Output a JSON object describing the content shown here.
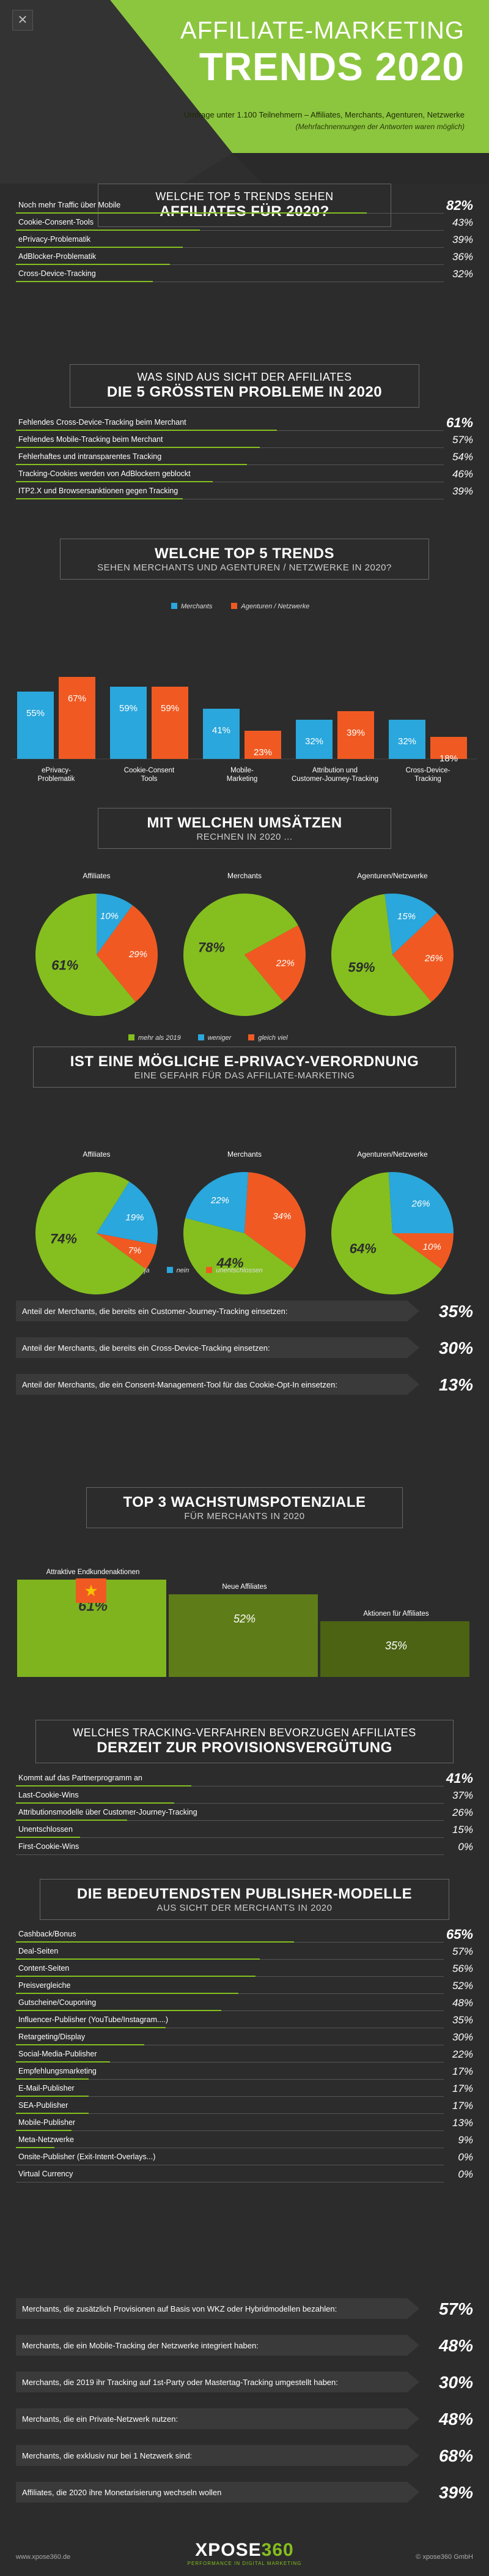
{
  "header": {
    "line1": "AFFILIATE-MARKETING",
    "line2": "TRENDS 2020",
    "info": "Umfrage unter 1.100  Teilnehmern – Affiliates, Merchants, Agenturen, Netzwerke",
    "note": "(Mehrfachnennungen der Antworten waren möglich)"
  },
  "s1": {
    "title1": "WELCHE TOP 5 TRENDS SEHEN",
    "title2": "AFFILIATES FÜR 2020?",
    "rows": [
      {
        "label": "Noch mehr Traffic über Mobile",
        "value": "82%",
        "pct": 82
      },
      {
        "label": "Cookie-Consent-Tools",
        "value": "43%",
        "pct": 43
      },
      {
        "label": "ePrivacy-Problematik",
        "value": "39%",
        "pct": 39
      },
      {
        "label": "AdBlocker-Problematik",
        "value": "36%",
        "pct": 36
      },
      {
        "label": "Cross-Device-Tracking",
        "value": "32%",
        "pct": 32
      }
    ]
  },
  "s2": {
    "title1": "WAS SIND AUS SICHT DER AFFILIATES",
    "title2": "DIE 5 GRÖSSTEN PROBLEME IN 2020",
    "rows": [
      {
        "label": "Fehlendes Cross-Device-Tracking beim Merchant",
        "value": "61%",
        "pct": 61
      },
      {
        "label": "Fehlendes Mobile-Tracking beim Merchant",
        "value": "57%",
        "pct": 57
      },
      {
        "label": "Fehlerhaftes und intransparentes Tracking",
        "value": "54%",
        "pct": 54
      },
      {
        "label": "Tracking-Cookies werden von AdBlockern geblockt",
        "value": "46%",
        "pct": 46
      },
      {
        "label": "ITP2.X und Browsersanktionen gegen Tracking",
        "value": "39%",
        "pct": 39
      }
    ]
  },
  "s3": {
    "title1": "WELCHE TOP 5 TRENDS",
    "title2": "SEHEN MERCHANTS UND AGENTUREN / NETZWERKE IN 2020?"
  },
  "s4": {
    "title1": "MIT WELCHEN UMSÄTZEN",
    "title2": "RECHNEN IN 2020 ..."
  },
  "s5": {
    "title1": "IST EINE MÖGLICHE E-PRIVACY-VERORDNUNG",
    "title2": "EINE GEFAHR FÜR DAS AFFILIATE-MARKETING"
  },
  "stats1": [
    {
      "text": "Anteil der Merchants, die bereits ein Customer-Journey-Tracking einsetzen:",
      "value": "35%"
    },
    {
      "text": "Anteil der Merchants, die bereits ein Cross-Device-Tracking einsetzen:",
      "value": "30%"
    },
    {
      "text": "Anteil der Merchants, die ein Consent-Management-Tool für das Cookie-Opt-In einsetzen:",
      "value": "13%"
    }
  ],
  "s6": {
    "title1": "TOP 3 WACHSTUMSPOTENZIALE",
    "title2": "FÜR MERCHANTS IN 2020",
    "items": [
      {
        "label": "Attraktive Endkundenaktionen",
        "value": "61%",
        "pct": 61
      },
      {
        "label": "Neue Affiliates",
        "value": "52%",
        "pct": 52
      },
      {
        "label": "Aktionen für Affiliates",
        "value": "35%",
        "pct": 35
      }
    ]
  },
  "s7": {
    "title1": "WELCHES TRACKING-VERFAHREN BEVORZUGEN AFFILIATES",
    "title2": "DERZEIT ZUR PROVISIONSVERGÜTUNG",
    "rows": [
      {
        "label": "Kommt auf das Partnerprogramm an",
        "value": "41%",
        "pct": 41
      },
      {
        "label": "Last-Cookie-Wins",
        "value": "37%",
        "pct": 37
      },
      {
        "label": "Attributionsmodelle über Customer-Journey-Tracking",
        "value": "26%",
        "pct": 26
      },
      {
        "label": "Unentschlossen",
        "value": "15%",
        "pct": 15
      },
      {
        "label": "First-Cookie-Wins",
        "value": "0%",
        "pct": 0
      }
    ]
  },
  "s8": {
    "title1": "DIE BEDEUTENDSTEN PUBLISHER-MODELLE",
    "title2": "AUS SICHT DER MERCHANTS IN 2020",
    "rows": [
      {
        "label": "Cashback/Bonus",
        "value": "65%",
        "pct": 65
      },
      {
        "label": "Deal-Seiten",
        "value": "57%",
        "pct": 57
      },
      {
        "label": "Content-Seiten",
        "value": "56%",
        "pct": 56
      },
      {
        "label": "Preisvergleiche",
        "value": "52%",
        "pct": 52
      },
      {
        "label": "Gutscheine/Couponing",
        "value": "48%",
        "pct": 48
      },
      {
        "label": "Influencer-Publisher (YouTube/Instagram....)",
        "value": "35%",
        "pct": 35
      },
      {
        "label": "Retargeting/Display",
        "value": "30%",
        "pct": 30
      },
      {
        "label": "Social-Media-Publisher",
        "value": "22%",
        "pct": 22
      },
      {
        "label": "Empfehlungsmarketing",
        "value": "17%",
        "pct": 17
      },
      {
        "label": "E-Mail-Publisher",
        "value": "17%",
        "pct": 17
      },
      {
        "label": "SEA-Publisher",
        "value": "17%",
        "pct": 17
      },
      {
        "label": "Mobile-Publisher",
        "value": "13%",
        "pct": 13
      },
      {
        "label": "Meta-Netzwerke",
        "value": "9%",
        "pct": 9
      },
      {
        "label": "Onsite-Publisher (Exit-Intent-Overlays...)",
        "value": "0%",
        "pct": 0
      },
      {
        "label": "Virtual Currency",
        "value": "0%",
        "pct": 0
      }
    ]
  },
  "stats2": [
    {
      "text": "Merchants, die zusätzlich Provisionen auf Basis von WKZ oder Hybridmodellen bezahlen:",
      "value": "57%"
    },
    {
      "text": "Merchants, die ein Mobile-Tracking der Netzwerke integriert haben:",
      "value": "48%"
    },
    {
      "text": "Merchants, die 2019 ihr Tracking auf 1st-Party oder Mastertag-Tracking umgestellt haben:",
      "value": "30%"
    },
    {
      "text": "Merchants, die ein Private-Netzwerk nutzen:",
      "value": "48%"
    },
    {
      "text": "Merchants, die exklusiv nur bei 1 Netzwerk sind:",
      "value": "68%"
    },
    {
      "text": "Affiliates, die 2020 ihre Monetarisierung wechseln wollen",
      "value": "39%"
    }
  ],
  "footer": {
    "left": "www.xpose360.de",
    "right": "© xpose360 GmbH",
    "brand_a": "XPOSE",
    "brand_b": "360",
    "tagline": "PERFORMANCE IN DIGITAL MARKETING"
  },
  "colors": {
    "green": "#84bf1f",
    "blue": "#2aa7dc",
    "orange": "#f05a22"
  },
  "chart_data": [
    {
      "type": "bar",
      "categories": [
        "ePrivacy-\nProblematik",
        "Cookie-Consent\nTools",
        "Mobile-\nMarketing",
        "Attribution und\nCustomer-Journey-Tracking",
        "Cross-Device-\nTracking"
      ],
      "series": [
        {
          "name": "Merchants",
          "values": [
            55,
            59,
            41,
            32,
            32
          ]
        },
        {
          "name": "Agenturen / Netzwerke",
          "values": [
            67,
            59,
            23,
            39,
            18
          ]
        }
      ],
      "ylim": [
        0,
        80
      ]
    },
    {
      "type": "pie",
      "legend": [
        "mehr als 2019",
        "weniger",
        "gleich viel"
      ],
      "charts": [
        {
          "title": "Affiliates",
          "values": [
            61,
            10,
            29
          ]
        },
        {
          "title": "Merchants",
          "values": [
            78,
            0,
            22
          ]
        },
        {
          "title": "Agenturen/Netzwerke",
          "values": [
            59,
            15,
            26
          ]
        }
      ]
    },
    {
      "type": "pie",
      "legend": [
        "ja",
        "nein",
        "unentschlossen"
      ],
      "charts": [
        {
          "title": "Affiliates",
          "values": [
            74,
            19,
            7
          ]
        },
        {
          "title": "Merchants",
          "values": [
            44,
            22,
            34
          ]
        },
        {
          "title": "Agenturen/Netzwerke",
          "values": [
            64,
            26,
            10
          ]
        }
      ]
    }
  ]
}
